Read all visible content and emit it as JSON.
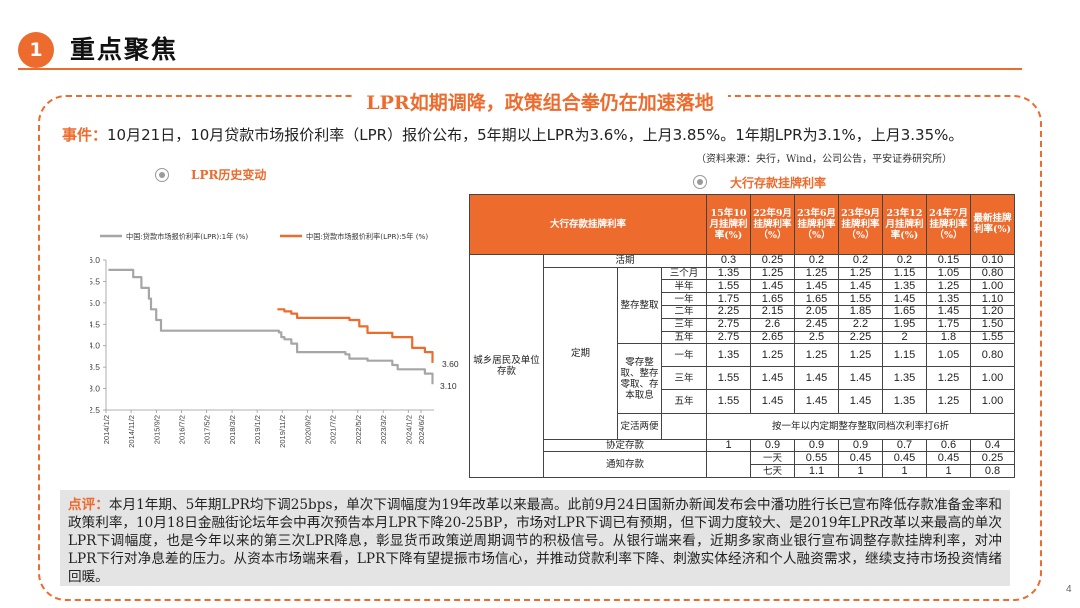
{
  "header": {
    "badge": "1",
    "section_title": "重点聚焦"
  },
  "main_title": "LPR如期调降，政策组合拳仍在加速落地",
  "event": {
    "label": "事件：",
    "text": "10月21日，10月贷款市场报价利率（LPR）报价公布，5年期以上LPR为3.6%，上月3.85%。1年期LPR为3.1%，上月3.35%。"
  },
  "source_note": "（资料来源：央行，Wind，公司公告，平安证券研究所）",
  "chart_title": "LPR历史变动",
  "table_title": "大行存款挂牌利率",
  "chart_data": {
    "type": "line",
    "series": [
      {
        "name": "中国:贷款市场报价利率(LPR):1年 (%)",
        "color": "#a6a6a6",
        "points": [
          [
            2014.08,
            5.77
          ],
          [
            2014.83,
            5.77
          ],
          [
            2014.9,
            5.6
          ],
          [
            2015.17,
            5.35
          ],
          [
            2015.42,
            5.1
          ],
          [
            2015.49,
            4.85
          ],
          [
            2015.66,
            4.6
          ],
          [
            2015.82,
            4.35
          ],
          [
            2019.67,
            4.35
          ],
          [
            2019.72,
            4.31
          ],
          [
            2019.8,
            4.2
          ],
          [
            2019.9,
            4.15
          ],
          [
            2020.13,
            4.05
          ],
          [
            2020.32,
            3.85
          ],
          [
            2021.92,
            3.8
          ],
          [
            2022.05,
            3.7
          ],
          [
            2022.65,
            3.65
          ],
          [
            2023.47,
            3.55
          ],
          [
            2023.65,
            3.45
          ],
          [
            2024.55,
            3.35
          ],
          [
            2024.8,
            3.1
          ]
        ]
      },
      {
        "name": "中国:贷款市场报价利率(LPR):5年 (%)",
        "color": "#ec6b2d",
        "points": [
          [
            2019.67,
            4.85
          ],
          [
            2019.9,
            4.8
          ],
          [
            2020.13,
            4.75
          ],
          [
            2020.32,
            4.65
          ],
          [
            2022.05,
            4.6
          ],
          [
            2022.38,
            4.45
          ],
          [
            2022.65,
            4.3
          ],
          [
            2023.47,
            4.2
          ],
          [
            2024.13,
            3.95
          ],
          [
            2024.55,
            3.85
          ],
          [
            2024.8,
            3.6
          ]
        ]
      }
    ],
    "x_ticks": [
      "2014/1/2",
      "2014/11/2",
      "2015/9/2",
      "2016/7/2",
      "2017/5/2",
      "2018/3/2",
      "2019/1/2",
      "2019/11/2",
      "2020/9/2",
      "2021/7/2",
      "2022/5/2",
      "2023/3/2",
      "2024/1/2",
      "2024/6/2"
    ],
    "x_tick_values": [
      2014.0,
      2014.83,
      2015.67,
      2016.5,
      2017.33,
      2018.17,
      2019.0,
      2019.83,
      2020.67,
      2021.5,
      2022.33,
      2023.17,
      2024.0,
      2024.42
    ],
    "xlim": [
      2014.0,
      2024.85
    ],
    "ylim": [
      2.5,
      6.0
    ],
    "y_ticks": [
      "2.5",
      "3.0",
      "3.5",
      "4.0",
      "4.5",
      "5.0",
      "5.5",
      "6.0"
    ],
    "end_labels": [
      "3.60",
      "3.10"
    ],
    "legend_position": "top",
    "grid": false
  },
  "table": {
    "header": [
      "大行存款挂牌利率",
      "15年10月挂牌利率(%)",
      "22年9月挂牌利率（%）",
      "23年6月挂牌利率（%）",
      "23年9月挂牌利率（%）",
      "23年12月挂牌利率(%)",
      "24年7月挂牌利率（%）",
      "最新挂牌利率(%)"
    ],
    "group_label": "城乡居民及单位存款",
    "current_label": "活期",
    "current_values": [
      "0.3",
      "0.25",
      "0.2",
      "0.2",
      "0.2",
      "0.15",
      "0.10"
    ],
    "time_label": "定期",
    "lump_label": "整存整取",
    "lump_rows": [
      {
        "term": "三个月",
        "values": [
          "1.35",
          "1.25",
          "1.25",
          "1.25",
          "1.15",
          "1.05",
          "0.80"
        ]
      },
      {
        "term": "半年",
        "values": [
          "1.55",
          "1.45",
          "1.45",
          "1.45",
          "1.35",
          "1.25",
          "1.00"
        ]
      },
      {
        "term": "一年",
        "values": [
          "1.75",
          "1.65",
          "1.65",
          "1.55",
          "1.45",
          "1.35",
          "1.10"
        ]
      },
      {
        "term": "二年",
        "values": [
          "2.25",
          "2.15",
          "2.05",
          "1.85",
          "1.65",
          "1.45",
          "1.20"
        ]
      },
      {
        "term": "三年",
        "values": [
          "2.75",
          "2.6",
          "2.45",
          "2.2",
          "1.95",
          "1.75",
          "1.50"
        ]
      },
      {
        "term": "五年",
        "values": [
          "2.75",
          "2.65",
          "2.5",
          "2.25",
          "2",
          "1.8",
          "1.55"
        ]
      }
    ],
    "installment_label": "零存整取、整存零取、存本取息",
    "installment_rows": [
      {
        "term": "一年",
        "values": [
          "1.35",
          "1.25",
          "1.25",
          "1.25",
          "1.15",
          "1.05",
          "0.80"
        ]
      },
      {
        "term": "三年",
        "values": [
          "1.55",
          "1.45",
          "1.45",
          "1.45",
          "1.35",
          "1.25",
          "1.00"
        ]
      },
      {
        "term": "五年",
        "values": [
          "1.55",
          "1.45",
          "1.45",
          "1.45",
          "1.35",
          "1.25",
          "1.00"
        ]
      }
    ],
    "flexible_label": "定活两便",
    "flexible_text": "按一年以内定期整存整取同档次利率打6折",
    "agreement_label": "协定存款",
    "agreement_values": [
      "1",
      "0.9",
      "0.9",
      "0.9",
      "0.7",
      "0.6",
      "0.4"
    ],
    "notice_label": "通知存款",
    "notice_rows": [
      {
        "term": "一天",
        "values": [
          "0.55",
          "0.45",
          "0.45",
          "0.45",
          "0.25",
          "0.15",
          "0.10"
        ]
      },
      {
        "term": "七天",
        "values": [
          "1.1",
          "1",
          "1",
          "1",
          "0.8",
          "0.7",
          "0.45"
        ]
      }
    ]
  },
  "comment": {
    "label": "点评：",
    "text": "本月1年期、5年期LPR均下调25bps，单次下调幅度为19年改革以来最高。此前9月24日国新办新闻发布会中潘功胜行长已宣布降低存款准备金率和政策利率，10月18日金融街论坛年会中再次预告本月LPR下降20-25BP，市场对LPR下调已有预期，但下调力度较大、是2019年LPR改革以来最高的单次LPR下调幅度，也是今年以来的第三次LPR降息，彰显货币政策逆周期调节的积极信号。从银行端来看，近期多家商业银行宣布调整存款挂牌利率，对冲LPR下行对净息差的压力。从资本市场端来看，LPR下降有望提振市场信心，并推动贷款利率下降、刺激实体经济和个人融资需求，继续支持市场投资情绪回暖。"
  },
  "page_number": "4",
  "colors": {
    "accent": "#ec6b2d",
    "grey_line": "#a6a6a6",
    "comment_bg": "#e4e4e4"
  }
}
